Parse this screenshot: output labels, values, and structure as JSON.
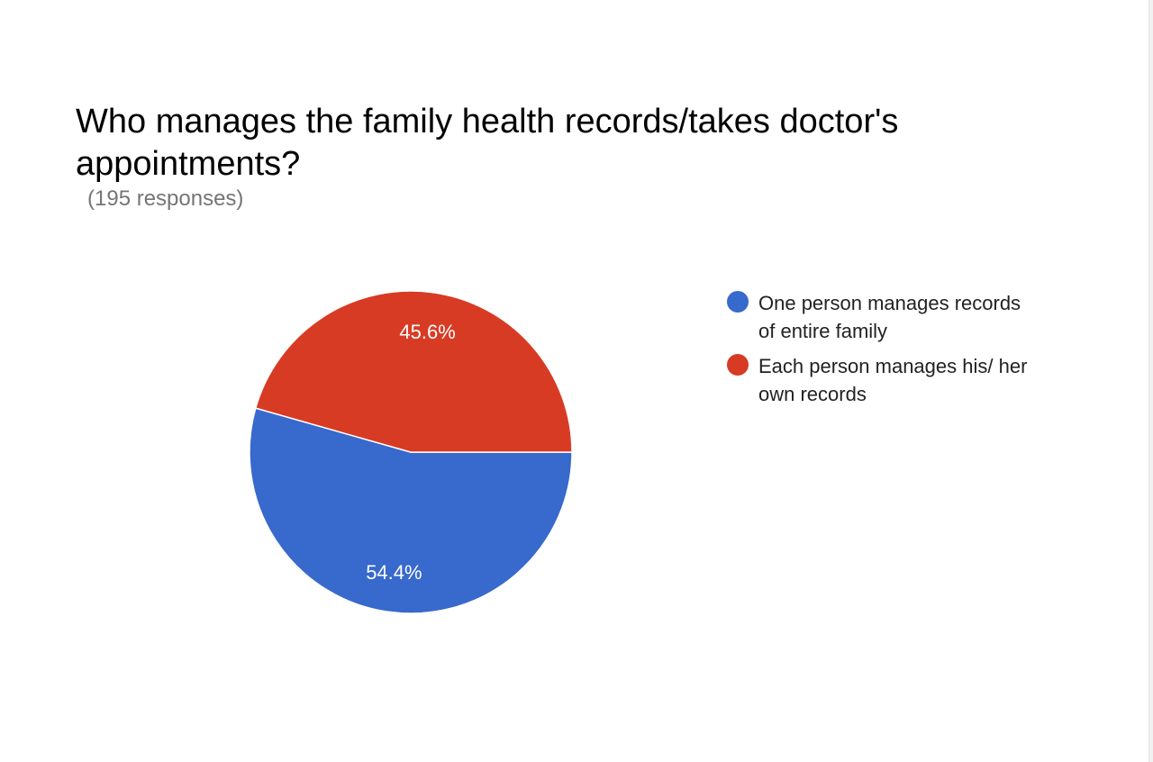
{
  "title": "Who manages the family health records/takes doctor's appointments?",
  "subtitle": "(195 responses)",
  "colors": {
    "slice_1": "#3869cc",
    "slice_2": "#d83b23",
    "separator": "#ffffff"
  },
  "chart_data": {
    "type": "pie",
    "title": "Who manages the family health records/takes doctor's appointments?",
    "subtitle": "(195 responses)",
    "legend_position": "right",
    "slices": [
      {
        "label": "One person manages records of entire family",
        "value": 54.4,
        "display": "54.4%",
        "color": "#3869cc"
      },
      {
        "label": "Each person manages his/ her own records",
        "value": 45.6,
        "display": "45.6%",
        "color": "#d83b23"
      }
    ]
  }
}
